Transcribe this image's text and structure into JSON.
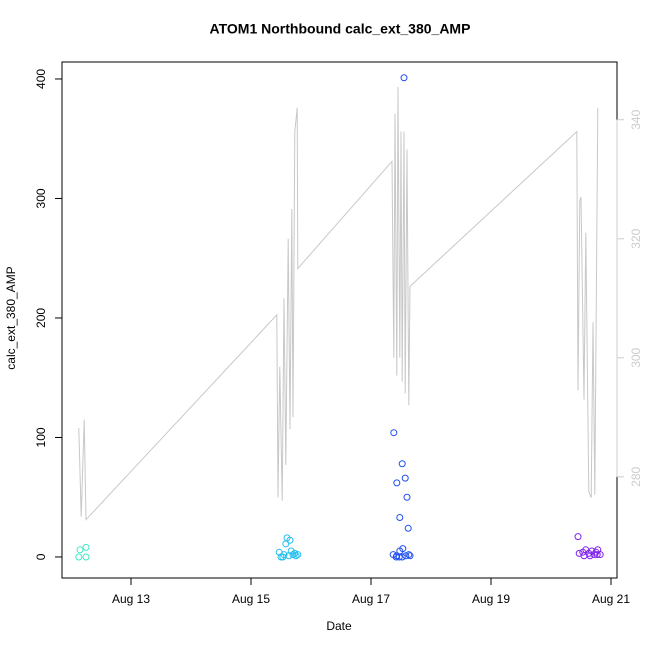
{
  "chart_data": {
    "type": "scatter",
    "title": "ATOM1 Northbound calc_ext_380_AMP",
    "x_label": "Date",
    "y_label": "calc_ext_380_AMP",
    "xlim": [
      11.85,
      21.1
    ],
    "xticks": [
      {
        "value": 13,
        "label": "Aug 13"
      },
      {
        "value": 15,
        "label": "Aug 15"
      },
      {
        "value": 17,
        "label": "Aug 17"
      },
      {
        "value": 19,
        "label": "Aug 19"
      },
      {
        "value": 21,
        "label": "Aug 21"
      }
    ],
    "ylim": [
      -17.6,
      414.2
    ],
    "yticks": [
      0,
      100,
      200,
      300,
      400
    ],
    "y2lim": [
      263,
      349.7
    ],
    "y2ticks": [
      280,
      300,
      320,
      340
    ],
    "series": [
      {
        "color": "#40e8c8",
        "x": [
          12.15,
          12.25,
          12.13,
          12.25
        ],
        "values": [
          6,
          8,
          0,
          0
        ]
      },
      {
        "color": "#20c0f0",
        "x": [
          15.47,
          15.5,
          15.55,
          15.6,
          15.65,
          15.58,
          15.67,
          15.7,
          15.75,
          15.78,
          15.53,
          15.63,
          15.73
        ],
        "values": [
          4,
          0,
          2,
          16,
          14,
          11,
          5,
          2,
          1,
          2,
          0,
          1,
          3
        ]
      },
      {
        "color": "#2050f0",
        "x": [
          17.38,
          17.52,
          17.43,
          17.57,
          17.6,
          17.48,
          17.62,
          17.55,
          17.37,
          17.43,
          17.48,
          17.53,
          17.58,
          17.63,
          17.42,
          17.47,
          17.52,
          17.65
        ],
        "values": [
          104,
          78,
          62,
          66,
          50,
          33,
          24,
          401,
          2,
          1,
          5,
          7,
          1,
          2,
          0,
          0,
          0,
          1
        ]
      },
      {
        "color": "#8020f0",
        "x": [
          20.45,
          20.47,
          20.53,
          20.58,
          20.63,
          20.68,
          20.75,
          20.78,
          20.82,
          20.55,
          20.65,
          20.72,
          20.77
        ],
        "values": [
          17,
          3,
          4,
          6,
          3,
          5,
          4,
          6,
          2,
          1,
          1,
          2,
          2
        ]
      },
      {
        "color": "#c8c8c8",
        "axis": "y2",
        "x": [
          12.13,
          12.17,
          12.22,
          12.25,
          15.43,
          15.45,
          15.48,
          15.52,
          15.55,
          15.58,
          15.62,
          15.65,
          15.68,
          15.7,
          15.73,
          15.77,
          15.78,
          17.35,
          17.38,
          17.4,
          17.43,
          17.45,
          17.48,
          17.5,
          17.52,
          17.55,
          17.57,
          17.6,
          17.63,
          17.65,
          20.43,
          20.45,
          20.48,
          20.5,
          20.55,
          20.58,
          20.63,
          20.67,
          20.7,
          20.73,
          20.78
        ],
        "values": [
          288.2,
          273.3,
          289.6,
          272.8,
          307.2,
          276.5,
          298.5,
          276,
          310,
          282,
          320,
          288,
          325,
          290,
          338,
          342,
          315,
          333,
          300,
          341,
          297,
          345.5,
          300,
          338,
          296,
          338,
          294,
          335,
          292,
          312,
          338,
          294.5,
          326.5,
          327,
          293,
          321,
          277.5,
          276.5,
          306,
          277,
          342
        ]
      }
    ]
  }
}
